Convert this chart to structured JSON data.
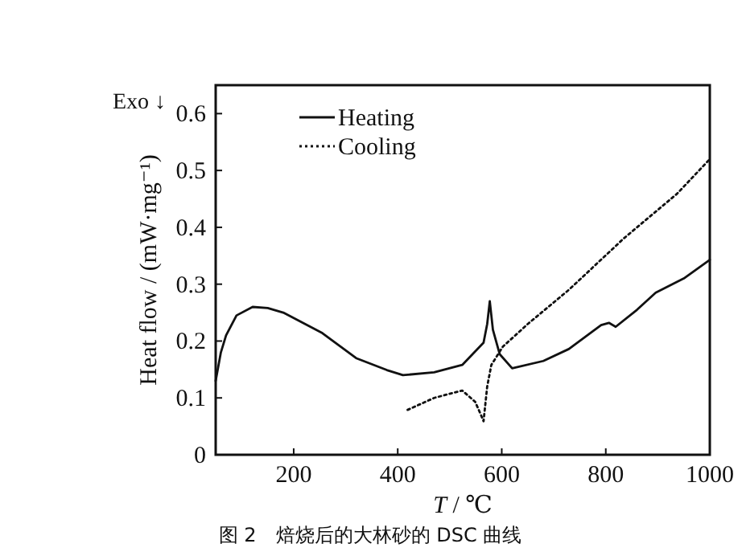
{
  "chart_data": {
    "type": "line",
    "xlabel": "T / ℃",
    "ylabel": "Heat flow / (mW·mg⁻¹)",
    "annotations": [
      "Exo ↓",
      "图 2　焙烧后的大林砂的 DSC 曲线"
    ],
    "xlim": [
      50,
      1000
    ],
    "xticks": [
      200,
      400,
      600,
      800,
      1000
    ],
    "ylim": [
      0,
      0.65
    ],
    "yticks": [
      0,
      0.1,
      0.2,
      0.3,
      0.4,
      0.5,
      0.6
    ],
    "legend": "top left",
    "grid": false,
    "marker": "none",
    "series": [
      {
        "name": "Heating",
        "color": "#111111",
        "line_style": "solid",
        "x": [
          50,
          60,
          70,
          90,
          121,
          150,
          180,
          255,
          320,
          379,
          410,
          470,
          524,
          565,
          572,
          577,
          583,
          596,
          620,
          680,
          729,
          791,
          806,
          819,
          860,
          896,
          950,
          1000
        ],
        "values": [
          0.13,
          0.18,
          0.21,
          0.245,
          0.26,
          0.258,
          0.25,
          0.214,
          0.17,
          0.149,
          0.14,
          0.145,
          0.158,
          0.197,
          0.23,
          0.27,
          0.22,
          0.177,
          0.152,
          0.165,
          0.186,
          0.228,
          0.232,
          0.225,
          0.255,
          0.285,
          0.31,
          0.343
        ]
      },
      {
        "name": "Cooling",
        "color": "#111111",
        "line_style": "dotted",
        "x": [
          419,
          470,
          524,
          549,
          560,
          565,
          572,
          580,
          602,
          650,
          729,
          834,
          937,
          1000
        ],
        "values": [
          0.079,
          0.1,
          0.113,
          0.093,
          0.07,
          0.059,
          0.12,
          0.158,
          0.19,
          0.23,
          0.29,
          0.38,
          0.459,
          0.52
        ]
      }
    ]
  }
}
